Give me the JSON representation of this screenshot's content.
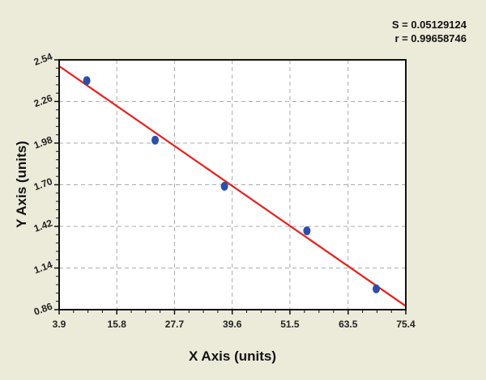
{
  "stats": {
    "s": "S = 0.05129124",
    "r": "r = 0.99658746"
  },
  "chart_data": {
    "type": "scatter",
    "xlabel": "X Axis (units)",
    "ylabel": "Y Axis (units)",
    "xlim": [
      3.9,
      75.4
    ],
    "ylim": [
      0.86,
      2.54
    ],
    "xticks": [
      "3.9",
      "15.8",
      "27.7",
      "39.6",
      "51.5",
      "63.5",
      "75.4"
    ],
    "yticks": [
      "0.86",
      "1.14",
      "1.42",
      "1.70",
      "1.98",
      "2.26",
      "2.54"
    ],
    "grid": true,
    "points": [
      {
        "x": 9.6,
        "y": 2.4
      },
      {
        "x": 23.7,
        "y": 2.0
      },
      {
        "x": 38.0,
        "y": 1.69
      },
      {
        "x": 55.0,
        "y": 1.39
      },
      {
        "x": 69.3,
        "y": 1.0
      }
    ],
    "fit_line": {
      "x": [
        3.9,
        75.4
      ],
      "y": [
        2.498,
        0.884
      ]
    },
    "colors": {
      "points": "#2a4fa8",
      "fit_line": "#e8201c",
      "background": "#ecebda"
    }
  }
}
